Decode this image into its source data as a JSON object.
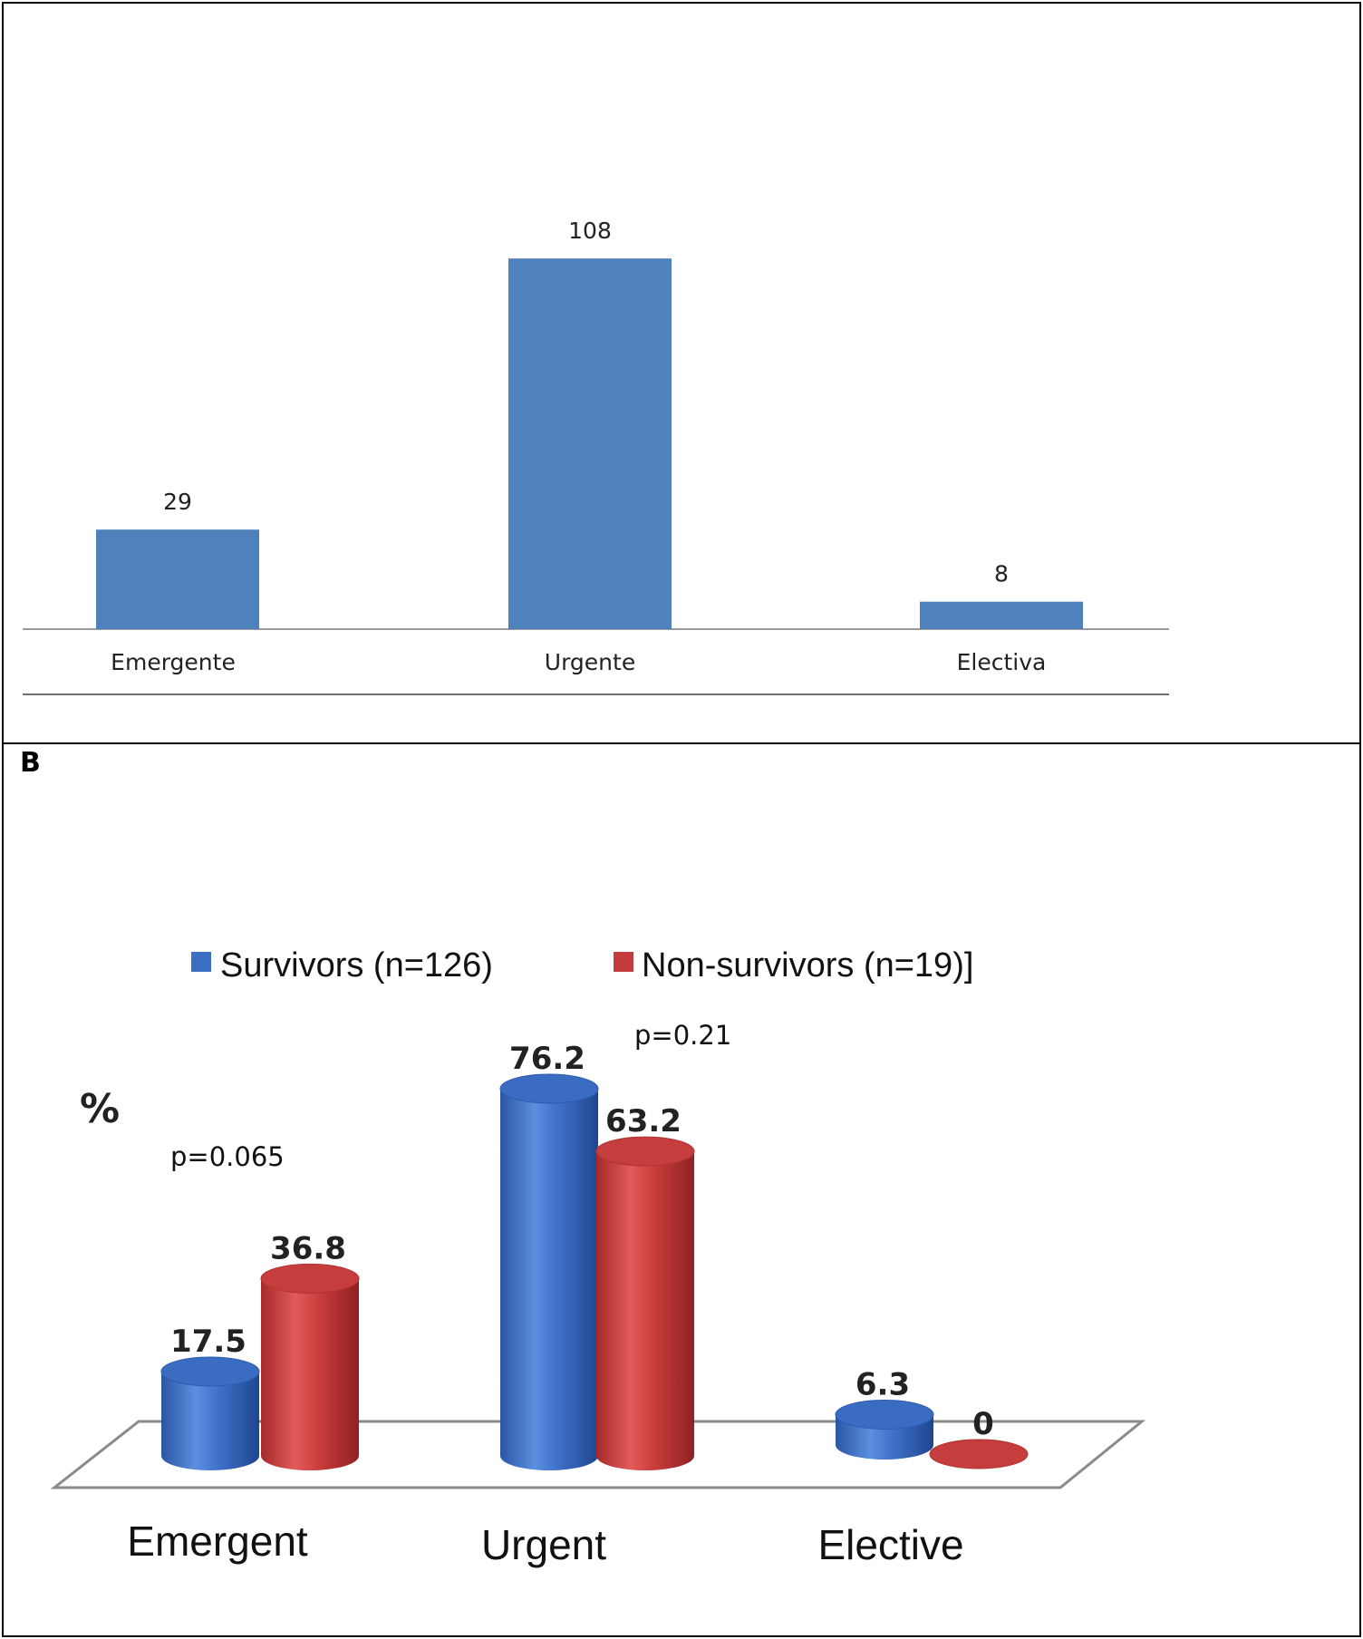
{
  "panel_label": "B",
  "chart_data": [
    {
      "type": "bar",
      "categories": [
        "Emergente",
        "Urgente",
        "Electiva"
      ],
      "values": [
        29,
        108,
        8
      ],
      "data_labels": [
        "29",
        "108",
        "8"
      ],
      "title": "",
      "xlabel": "",
      "ylabel": "",
      "ylim": [
        0,
        140
      ],
      "grid": false,
      "legend": "none",
      "colors": {
        "bar": "#4f81bd"
      }
    },
    {
      "type": "bar",
      "style": "3d-cylinder",
      "categories": [
        "Emergent",
        "Urgent",
        "Elective"
      ],
      "series": [
        {
          "name": "Survivors (n=126)",
          "values": [
            17.5,
            76.2,
            6.3
          ],
          "labels": [
            "17.5",
            "76.2",
            "6.3"
          ],
          "color": "#3b6fc4"
        },
        {
          "name": "Non-survivors (n=19)]",
          "values": [
            36.8,
            63.2,
            0
          ],
          "labels": [
            "36.8",
            "63.2",
            "0"
          ],
          "color": "#c43b3b"
        }
      ],
      "ylabel": "%",
      "annotations": [
        "p=0.065",
        "p=0.21"
      ],
      "ylim": [
        0,
        90
      ],
      "grid": false,
      "legend": "top"
    }
  ]
}
